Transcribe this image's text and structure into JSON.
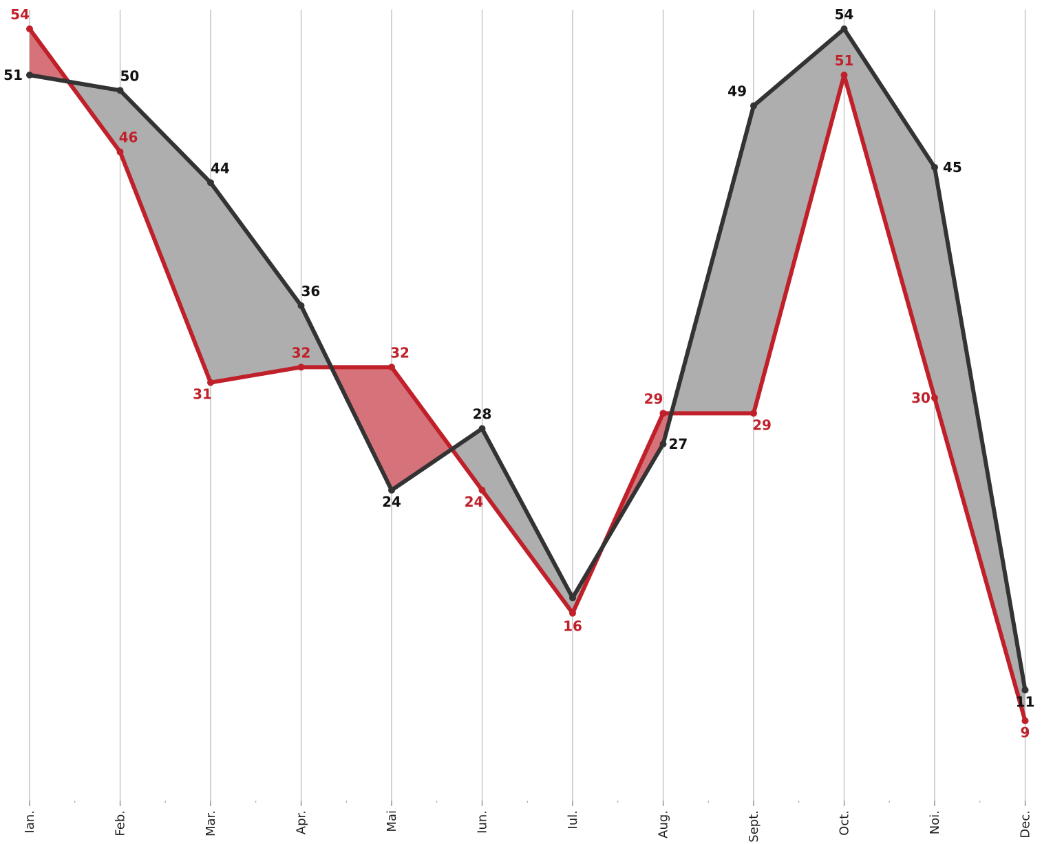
{
  "chart_data": {
    "type": "line",
    "categories": [
      "Ian.",
      "Feb.",
      "Mar.",
      "Apr.",
      "Mai",
      "Iun.",
      "Iul.",
      "Aug.",
      "Sept.",
      "Oct.",
      "Noi.",
      "Dec."
    ],
    "series": [
      {
        "values": [
          51,
          50,
          44,
          36,
          24,
          28,
          17,
          27,
          49,
          54,
          45,
          11
        ],
        "labels": [
          "51",
          "50",
          "44",
          "36",
          "24",
          "28",
          "",
          "27",
          "49",
          "54",
          "45",
          "11"
        ],
        "color": "#333333"
      },
      {
        "values": [
          54,
          46,
          31,
          32,
          32,
          24,
          16,
          29,
          29,
          51,
          30,
          9
        ],
        "labels": [
          "54",
          "46",
          "31",
          "32",
          "32",
          "24",
          "16",
          "29",
          "29",
          "51",
          "30",
          "9"
        ],
        "color": "#c0202a"
      }
    ],
    "fill_colors": {
      "dark_above": "#aeaeae",
      "red_above": "#d6737a"
    },
    "ylim": [
      0,
      56
    ],
    "grid": "vertical"
  }
}
